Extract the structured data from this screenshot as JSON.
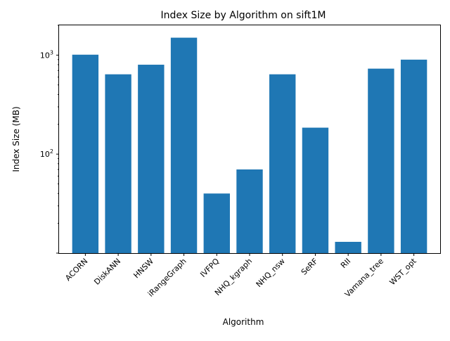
{
  "chart_data": {
    "type": "bar",
    "title": "Index Size by Algorithm on sift1M",
    "xlabel": "Algorithm",
    "ylabel": "Index Size (MB)",
    "yscale": "log",
    "ylim": [
      10,
      2000
    ],
    "grid": false,
    "legend": "none",
    "bar_color": "#1f77b4",
    "categories": [
      "ACORN",
      "DiskANN",
      "HNSW",
      "iRangeGraph",
      "IVFPQ",
      "NHQ_kgraph",
      "NHQ_nsw",
      "SeRF",
      "RII",
      "Vamana_tree",
      "WST_opt"
    ],
    "values": [
      1010,
      640,
      800,
      1500,
      40,
      70,
      640,
      185,
      13,
      730,
      900
    ],
    "ytick_labels": [
      {
        "value": 100,
        "base": "10",
        "exp": "2"
      },
      {
        "value": 1000,
        "base": "10",
        "exp": "3"
      }
    ]
  }
}
